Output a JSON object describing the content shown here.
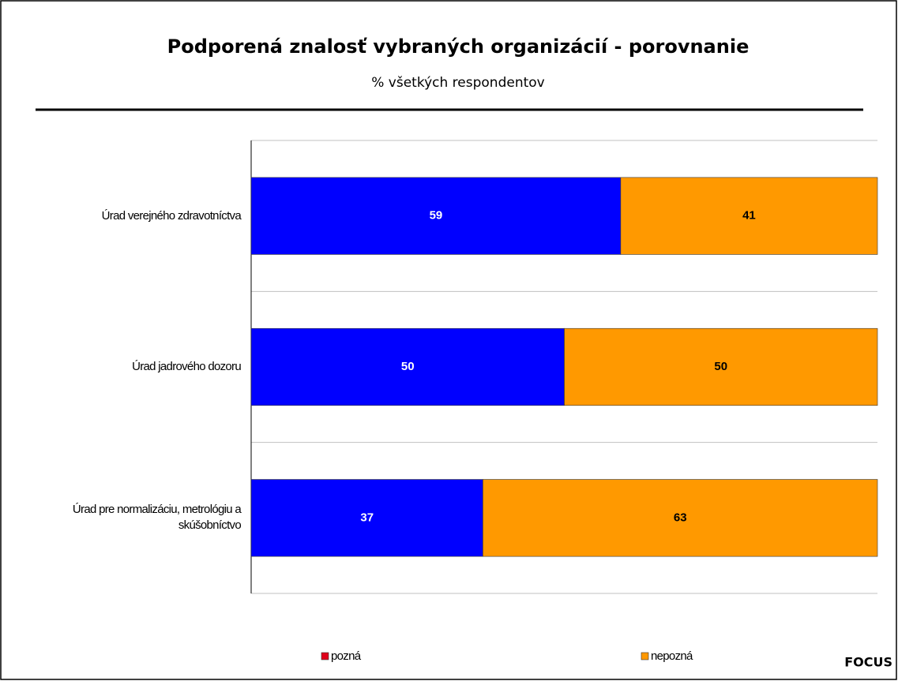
{
  "chart_data": {
    "type": "stacked_bar_horizontal",
    "title": "Podporená znalosť vybraných organizácií - porovnanie",
    "subtitle": "% všetkých respondentov",
    "source": "FOCUS",
    "categories": [
      "Úrad verejného zdravotníctva",
      "Úrad jadrového dozoru",
      "Úrad pre normalizáciu, metrológiu a skúšobníctvo"
    ],
    "xlim": [
      0,
      100
    ],
    "series": [
      {
        "name": "pozná",
        "color": "#0000ff",
        "legend_color": "#e0001b",
        "label_color": "#ffffff",
        "values": [
          59,
          50,
          37
        ]
      },
      {
        "name": "nepozná",
        "color": "#ff9900",
        "legend_color": "#ff9900",
        "label_color": "#000000",
        "values": [
          41,
          50,
          63
        ]
      }
    ]
  }
}
